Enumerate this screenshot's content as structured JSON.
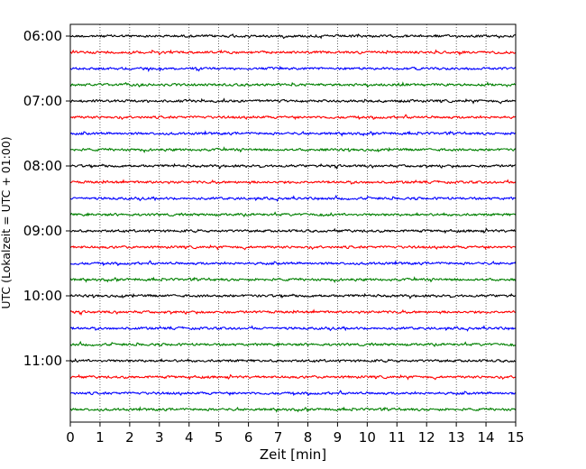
{
  "chart_data": {
    "type": "line",
    "title": "",
    "xlabel": "Zeit  [min]",
    "ylabel": "UTC (Lokalzeit = UTC + 01:00)",
    "xlim": [
      0,
      15
    ],
    "x_ticks": [
      "0",
      "1",
      "2",
      "3",
      "4",
      "5",
      "6",
      "7",
      "8",
      "9",
      "10",
      "11",
      "12",
      "13",
      "14",
      "15"
    ],
    "y_ticks": [
      "06:00",
      "07:00",
      "08:00",
      "09:00",
      "10:00",
      "11:00"
    ],
    "grid": "vertical-dotted",
    "series_colors": [
      "#000000",
      "#ff0000",
      "#0000ff",
      "#008000"
    ],
    "traces": [
      {
        "start": "06:00",
        "color": "#000000"
      },
      {
        "start": "06:15",
        "color": "#ff0000"
      },
      {
        "start": "06:30",
        "color": "#0000ff"
      },
      {
        "start": "06:45",
        "color": "#008000"
      },
      {
        "start": "07:00",
        "color": "#000000"
      },
      {
        "start": "07:15",
        "color": "#ff0000"
      },
      {
        "start": "07:30",
        "color": "#0000ff"
      },
      {
        "start": "07:45",
        "color": "#008000"
      },
      {
        "start": "08:00",
        "color": "#000000"
      },
      {
        "start": "08:15",
        "color": "#ff0000"
      },
      {
        "start": "08:30",
        "color": "#0000ff"
      },
      {
        "start": "08:45",
        "color": "#008000"
      },
      {
        "start": "09:00",
        "color": "#000000"
      },
      {
        "start": "09:15",
        "color": "#ff0000"
      },
      {
        "start": "09:30",
        "color": "#0000ff"
      },
      {
        "start": "09:45",
        "color": "#008000"
      },
      {
        "start": "10:00",
        "color": "#000000"
      },
      {
        "start": "10:15",
        "color": "#ff0000"
      },
      {
        "start": "10:30",
        "color": "#0000ff"
      },
      {
        "start": "10:45",
        "color": "#008000"
      },
      {
        "start": "11:00",
        "color": "#000000"
      },
      {
        "start": "11:15",
        "color": "#ff0000"
      },
      {
        "start": "11:30",
        "color": "#0000ff"
      },
      {
        "start": "11:45",
        "color": "#008000"
      }
    ]
  }
}
